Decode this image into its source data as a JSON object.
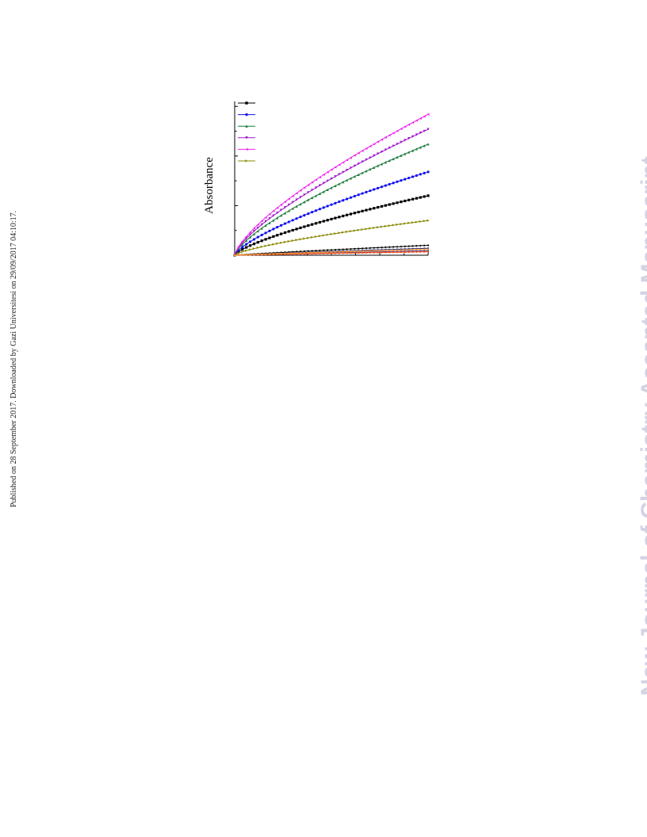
{
  "side_note": "Published on 28 September 2017. Downloaded by Gazi Universitesi on 29/09/2017 04:10:17.",
  "watermark": "New Journal of Chemistry Accepted Manuscript",
  "chart_data": {
    "type": "line",
    "ylabel": "Absorbance",
    "xlabel": "",
    "title": "",
    "xlim": [
      0,
      40
    ],
    "ylim": [
      0,
      1.55
    ],
    "legend_position": "top-left",
    "grid": false,
    "curves": [
      {
        "color": "#000000",
        "marker": "square",
        "a": 0.6,
        "p": 0.72
      },
      {
        "color": "#1010ee",
        "marker": "circle",
        "a": 0.84,
        "p": 0.72
      },
      {
        "color": "#1a7a3a",
        "marker": "triangle-up",
        "a": 1.12,
        "p": 0.72
      },
      {
        "color": "#9a18c9",
        "marker": "triangle-down",
        "a": 1.27,
        "p": 0.72
      },
      {
        "color": "#ee22ee",
        "marker": "triangle-left",
        "a": 1.42,
        "p": 0.72
      },
      {
        "color": "#888800",
        "marker": "triangle-right",
        "a": 0.35,
        "p": 0.72
      },
      {
        "color": "#000000",
        "marker": "dot",
        "a": 0.1,
        "p": 0.9
      },
      {
        "color": "#1a2a7a",
        "marker": "dot",
        "a": 0.07,
        "p": 0.9
      },
      {
        "color": "#3a3a88",
        "marker": "dot",
        "a": 0.045,
        "p": 0.9
      },
      {
        "color": "#ff4a1a",
        "marker": "dot",
        "a": 0.035,
        "p": 0.9
      },
      {
        "color": "#ff9a33",
        "marker": "dot",
        "a": 0.06,
        "p": 0.9
      }
    ]
  }
}
